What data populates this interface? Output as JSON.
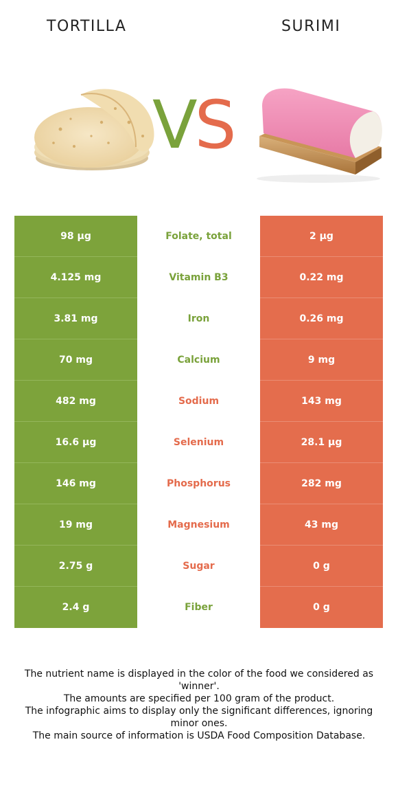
{
  "left_food": {
    "name": "TORTILLA",
    "color": "#7da33b"
  },
  "right_food": {
    "name": "SURIMI",
    "color": "#e46d4d"
  },
  "vs": {
    "v": "V",
    "s": "S"
  },
  "rows": [
    {
      "left": "98 µg",
      "nutrient": "Folate, total",
      "right": "2 µg",
      "winner": "left"
    },
    {
      "left": "4.125 mg",
      "nutrient": "Vitamin B3",
      "right": "0.22 mg",
      "winner": "left"
    },
    {
      "left": "3.81 mg",
      "nutrient": "Iron",
      "right": "0.26 mg",
      "winner": "left"
    },
    {
      "left": "70 mg",
      "nutrient": "Calcium",
      "right": "9 mg",
      "winner": "left"
    },
    {
      "left": "482 mg",
      "nutrient": "Sodium",
      "right": "143 mg",
      "winner": "right"
    },
    {
      "left": "16.6 µg",
      "nutrient": "Selenium",
      "right": "28.1 µg",
      "winner": "right"
    },
    {
      "left": "146 mg",
      "nutrient": "Phosphorus",
      "right": "282 mg",
      "winner": "right"
    },
    {
      "left": "19 mg",
      "nutrient": "Magnesium",
      "right": "43 mg",
      "winner": "right"
    },
    {
      "left": "2.75 g",
      "nutrient": "Sugar",
      "right": "0 g",
      "winner": "right"
    },
    {
      "left": "2.4 g",
      "nutrient": "Fiber",
      "right": "0 g",
      "winner": "left"
    }
  ],
  "footer": {
    "line1": "The nutrient name is displayed in the color of the food we considered as 'winner'.",
    "line2": "The amounts are specified per 100 gram of the product.",
    "line3": "The infographic aims to display only the significant differences, ignoring minor ones.",
    "line4": "The main source of information is USDA Food Composition Database."
  }
}
